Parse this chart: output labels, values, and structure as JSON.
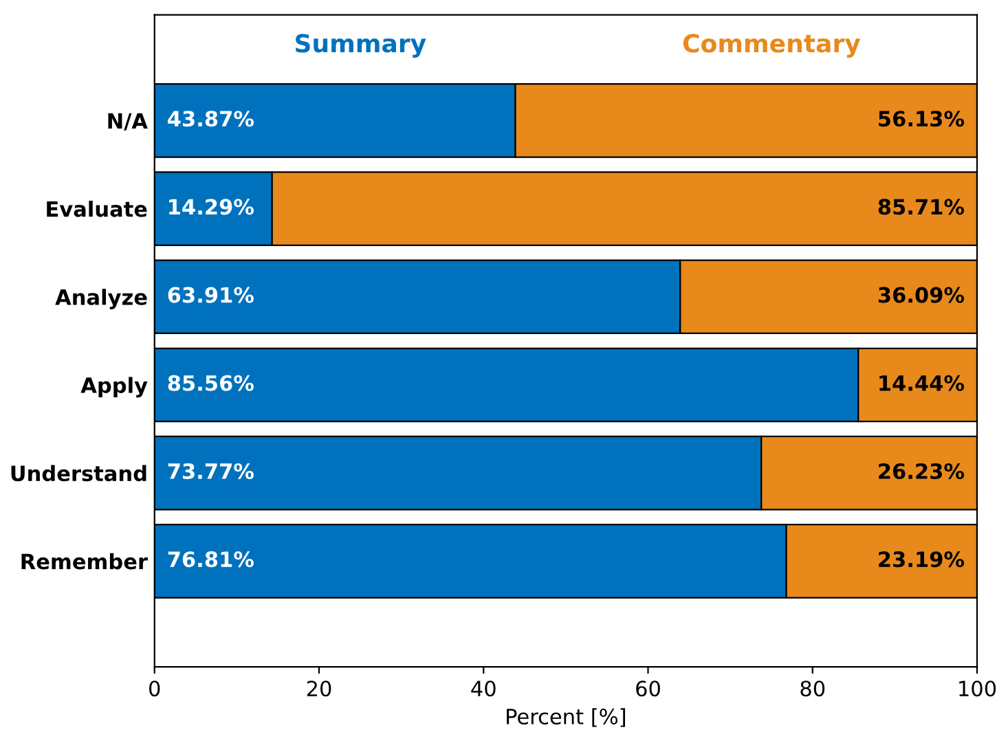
{
  "chart_data": {
    "type": "bar",
    "orientation": "horizontal",
    "stacked": true,
    "xlabel": "Percent [%]",
    "categories": [
      "N/A",
      "Evaluate",
      "Analyze",
      "Apply",
      "Understand",
      "Remember"
    ],
    "series": [
      {
        "name": "Summary",
        "color": "#0072bd",
        "values": [
          43.87,
          14.29,
          63.91,
          85.56,
          73.77,
          76.81
        ],
        "value_labels": [
          "43.87%",
          "14.29%",
          "63.91%",
          "85.56%",
          "73.77%",
          "76.81%"
        ]
      },
      {
        "name": "Commentary",
        "color": "#e8891c",
        "values": [
          56.13,
          85.71,
          36.09,
          14.44,
          26.23,
          23.19
        ],
        "value_labels": [
          "56.13%",
          "85.71%",
          "36.09%",
          "14.44%",
          "26.23%",
          "23.19%"
        ]
      }
    ],
    "xlim": [
      0,
      100
    ],
    "xticks": [
      0,
      20,
      40,
      60,
      80,
      100
    ],
    "grid": false,
    "legend": "top"
  }
}
